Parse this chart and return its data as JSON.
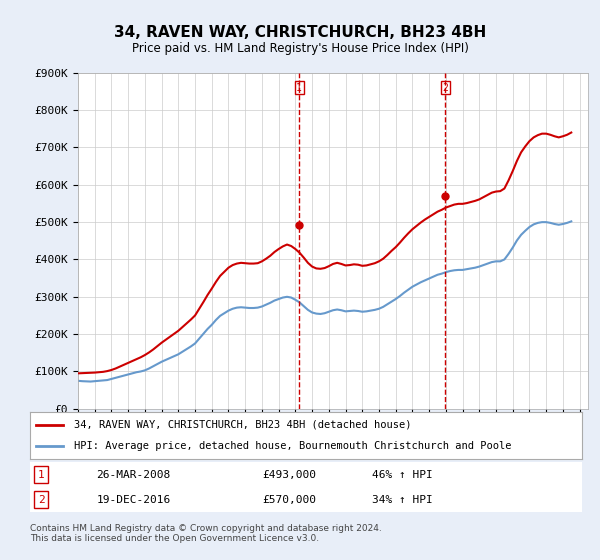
{
  "title": "34, RAVEN WAY, CHRISTCHURCH, BH23 4BH",
  "subtitle": "Price paid vs. HM Land Registry's House Price Index (HPI)",
  "xlabel": "",
  "ylabel": "",
  "ylim": [
    0,
    900000
  ],
  "xlim_start": 1995.0,
  "xlim_end": 2025.5,
  "yticks": [
    0,
    100000,
    200000,
    300000,
    400000,
    500000,
    600000,
    700000,
    800000,
    900000
  ],
  "ytick_labels": [
    "£0",
    "£100K",
    "£200K",
    "£300K",
    "£400K",
    "£500K",
    "£600K",
    "£700K",
    "£800K",
    "£900K"
  ],
  "line1_color": "#cc0000",
  "line2_color": "#6699cc",
  "vline1_x": 2008.23,
  "vline2_x": 2016.97,
  "vline_color": "#cc0000",
  "marker1_label": "1",
  "marker2_label": "2",
  "sale1_date": "26-MAR-2008",
  "sale1_price": "£493,000",
  "sale1_hpi": "46% ↑ HPI",
  "sale2_date": "19-DEC-2016",
  "sale2_price": "£570,000",
  "sale2_hpi": "34% ↑ HPI",
  "legend1": "34, RAVEN WAY, CHRISTCHURCH, BH23 4BH (detached house)",
  "legend2": "HPI: Average price, detached house, Bournemouth Christchurch and Poole",
  "footnote": "Contains HM Land Registry data © Crown copyright and database right 2024.\nThis data is licensed under the Open Government Licence v3.0.",
  "background_color": "#e8eef8",
  "plot_bg_color": "#ffffff",
  "grid_color": "#cccccc",
  "hpi_years": [
    1995.0,
    1995.25,
    1995.5,
    1995.75,
    1996.0,
    1996.25,
    1996.5,
    1996.75,
    1997.0,
    1997.25,
    1997.5,
    1997.75,
    1998.0,
    1998.25,
    1998.5,
    1998.75,
    1999.0,
    1999.25,
    1999.5,
    1999.75,
    2000.0,
    2000.25,
    2000.5,
    2000.75,
    2001.0,
    2001.25,
    2001.5,
    2001.75,
    2002.0,
    2002.25,
    2002.5,
    2002.75,
    2003.0,
    2003.25,
    2003.5,
    2003.75,
    2004.0,
    2004.25,
    2004.5,
    2004.75,
    2005.0,
    2005.25,
    2005.5,
    2005.75,
    2006.0,
    2006.25,
    2006.5,
    2006.75,
    2007.0,
    2007.25,
    2007.5,
    2007.75,
    2008.0,
    2008.25,
    2008.5,
    2008.75,
    2009.0,
    2009.25,
    2009.5,
    2009.75,
    2010.0,
    2010.25,
    2010.5,
    2010.75,
    2011.0,
    2011.25,
    2011.5,
    2011.75,
    2012.0,
    2012.25,
    2012.5,
    2012.75,
    2013.0,
    2013.25,
    2013.5,
    2013.75,
    2014.0,
    2014.25,
    2014.5,
    2014.75,
    2015.0,
    2015.25,
    2015.5,
    2015.75,
    2016.0,
    2016.25,
    2016.5,
    2016.75,
    2017.0,
    2017.25,
    2017.5,
    2017.75,
    2018.0,
    2018.25,
    2018.5,
    2018.75,
    2019.0,
    2019.25,
    2019.5,
    2019.75,
    2020.0,
    2020.25,
    2020.5,
    2020.75,
    2021.0,
    2021.25,
    2021.5,
    2021.75,
    2022.0,
    2022.25,
    2022.5,
    2022.75,
    2023.0,
    2023.25,
    2023.5,
    2023.75,
    2024.0,
    2024.25,
    2024.5
  ],
  "hpi_values": [
    75000,
    74000,
    73500,
    73000,
    74000,
    75000,
    76000,
    77000,
    80000,
    83000,
    86000,
    89000,
    92000,
    95000,
    98000,
    100000,
    103000,
    108000,
    114000,
    120000,
    126000,
    131000,
    136000,
    141000,
    146000,
    153000,
    160000,
    167000,
    175000,
    188000,
    201000,
    214000,
    225000,
    238000,
    249000,
    256000,
    263000,
    268000,
    271000,
    272000,
    271000,
    270000,
    270000,
    271000,
    274000,
    279000,
    284000,
    290000,
    294000,
    298000,
    300000,
    298000,
    292000,
    285000,
    275000,
    265000,
    258000,
    255000,
    254000,
    256000,
    260000,
    264000,
    266000,
    264000,
    261000,
    262000,
    263000,
    262000,
    260000,
    261000,
    263000,
    265000,
    268000,
    273000,
    280000,
    287000,
    294000,
    302000,
    311000,
    319000,
    327000,
    333000,
    339000,
    344000,
    349000,
    354000,
    359000,
    362000,
    366000,
    369000,
    371000,
    372000,
    372000,
    374000,
    376000,
    378000,
    381000,
    385000,
    389000,
    393000,
    395000,
    395000,
    400000,
    415000,
    432000,
    451000,
    466000,
    477000,
    487000,
    494000,
    498000,
    500000,
    500000,
    498000,
    495000,
    493000,
    495000,
    498000,
    502000
  ],
  "house_years": [
    1995.0,
    1995.25,
    1995.5,
    1995.75,
    1996.0,
    1996.25,
    1996.5,
    1996.75,
    1997.0,
    1997.25,
    1997.5,
    1997.75,
    1998.0,
    1998.25,
    1998.5,
    1998.75,
    1999.0,
    1999.25,
    1999.5,
    1999.75,
    2000.0,
    2000.25,
    2000.5,
    2000.75,
    2001.0,
    2001.25,
    2001.5,
    2001.75,
    2002.0,
    2002.25,
    2002.5,
    2002.75,
    2003.0,
    2003.25,
    2003.5,
    2003.75,
    2004.0,
    2004.25,
    2004.5,
    2004.75,
    2005.0,
    2005.25,
    2005.5,
    2005.75,
    2006.0,
    2006.25,
    2006.5,
    2006.75,
    2007.0,
    2007.25,
    2007.5,
    2007.75,
    2008.0,
    2008.25,
    2008.5,
    2008.75,
    2009.0,
    2009.25,
    2009.5,
    2009.75,
    2010.0,
    2010.25,
    2010.5,
    2010.75,
    2011.0,
    2011.25,
    2011.5,
    2011.75,
    2012.0,
    2012.25,
    2012.5,
    2012.75,
    2013.0,
    2013.25,
    2013.5,
    2013.75,
    2014.0,
    2014.25,
    2014.5,
    2014.75,
    2015.0,
    2015.25,
    2015.5,
    2015.75,
    2016.0,
    2016.25,
    2016.5,
    2016.75,
    2017.0,
    2017.25,
    2017.5,
    2017.75,
    2018.0,
    2018.25,
    2018.5,
    2018.75,
    2019.0,
    2019.25,
    2019.5,
    2019.75,
    2020.0,
    2020.25,
    2020.5,
    2020.75,
    2021.0,
    2021.25,
    2021.5,
    2021.75,
    2022.0,
    2022.25,
    2022.5,
    2022.75,
    2023.0,
    2023.25,
    2023.5,
    2023.75,
    2024.0,
    2024.25,
    2024.5
  ],
  "house_values": [
    95000,
    95500,
    96000,
    96500,
    97000,
    98000,
    99000,
    101000,
    104000,
    108000,
    113000,
    118000,
    123000,
    128000,
    133000,
    138000,
    144000,
    151000,
    159000,
    168000,
    177000,
    185000,
    193000,
    201000,
    209000,
    219000,
    229000,
    239000,
    250000,
    268000,
    286000,
    305000,
    322000,
    340000,
    356000,
    367000,
    378000,
    385000,
    389000,
    391000,
    390000,
    389000,
    389000,
    390000,
    395000,
    402000,
    410000,
    420000,
    428000,
    435000,
    440000,
    436000,
    428000,
    418000,
    405000,
    391000,
    381000,
    376000,
    375000,
    377000,
    382000,
    388000,
    391000,
    388000,
    384000,
    385000,
    387000,
    386000,
    383000,
    384000,
    387000,
    390000,
    395000,
    402000,
    412000,
    423000,
    433000,
    445000,
    458000,
    470000,
    481000,
    490000,
    499000,
    507000,
    514000,
    521000,
    528000,
    533000,
    539000,
    543000,
    547000,
    549000,
    549000,
    551000,
    554000,
    557000,
    561000,
    567000,
    573000,
    579000,
    582000,
    583000,
    590000,
    612000,
    637000,
    664000,
    687000,
    703000,
    717000,
    727000,
    733000,
    737000,
    737000,
    734000,
    730000,
    727000,
    730000,
    734000,
    740000
  ]
}
